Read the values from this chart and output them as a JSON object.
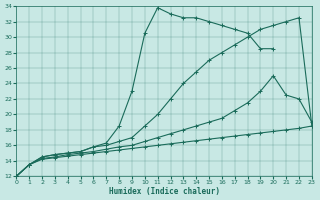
{
  "bg_color": "#c8e8e4",
  "line_color": "#1a6b5a",
  "xlabel": "Humidex (Indice chaleur)",
  "xlim": [
    0,
    23
  ],
  "ylim": [
    12,
    34
  ],
  "xticks": [
    0,
    1,
    2,
    3,
    4,
    5,
    6,
    7,
    8,
    9,
    10,
    11,
    12,
    13,
    14,
    15,
    16,
    17,
    18,
    19,
    20,
    21,
    22,
    23
  ],
  "yticks": [
    12,
    14,
    16,
    18,
    20,
    22,
    24,
    26,
    28,
    30,
    32,
    34
  ],
  "curves": [
    {
      "x": [
        0,
        1,
        2,
        3,
        4,
        5,
        6,
        7,
        8,
        9,
        10,
        11,
        12,
        13,
        14,
        15,
        16,
        17,
        18,
        19,
        20
      ],
      "y": [
        12,
        13.5,
        14.5,
        14.8,
        15.0,
        15.2,
        15.8,
        16.3,
        18.5,
        23.0,
        30.5,
        33.8,
        33.0,
        32.5,
        32.5,
        32.0,
        31.5,
        31.0,
        30.5,
        28.5,
        28.5
      ]
    },
    {
      "x": [
        0,
        1,
        2,
        3,
        4,
        5,
        6,
        7,
        8,
        9,
        10,
        11,
        12,
        13,
        14,
        15,
        16,
        17,
        18,
        19,
        20,
        21,
        22,
        23
      ],
      "y": [
        12,
        13.5,
        14.5,
        14.8,
        15.0,
        15.2,
        15.8,
        16.0,
        16.5,
        17.0,
        18.5,
        20.0,
        22.0,
        24.0,
        25.5,
        27.0,
        28.0,
        29.0,
        30.0,
        31.0,
        31.5,
        32.0,
        32.5,
        18.5
      ]
    },
    {
      "x": [
        0,
        1,
        2,
        3,
        4,
        5,
        6,
        7,
        8,
        9,
        10,
        11,
        12,
        13,
        14,
        15,
        16,
        17,
        18,
        19,
        20,
        21,
        22,
        23
      ],
      "y": [
        12,
        13.5,
        14.3,
        14.5,
        14.8,
        15.0,
        15.2,
        15.5,
        15.8,
        16.0,
        16.5,
        17.0,
        17.5,
        18.0,
        18.5,
        19.0,
        19.5,
        20.5,
        21.5,
        23.0,
        25.0,
        22.5,
        22.0,
        19.0
      ]
    },
    {
      "x": [
        0,
        1,
        2,
        3,
        4,
        5,
        6,
        7,
        8,
        9,
        10,
        11,
        12,
        13,
        14,
        15,
        16,
        17,
        18,
        19,
        20,
        21,
        22,
        23
      ],
      "y": [
        12,
        13.5,
        14.2,
        14.4,
        14.6,
        14.8,
        15.0,
        15.2,
        15.4,
        15.6,
        15.8,
        16.0,
        16.2,
        16.4,
        16.6,
        16.8,
        17.0,
        17.2,
        17.4,
        17.6,
        17.8,
        18.0,
        18.2,
        18.5
      ]
    }
  ]
}
